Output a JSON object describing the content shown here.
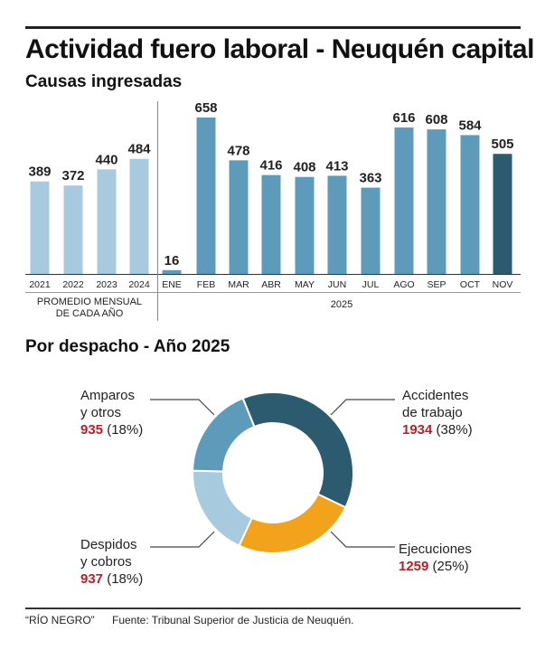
{
  "header": {
    "title": "Actividad fuero laboral - Neuquén capital",
    "subtitle_bars": "Causas ingresadas",
    "subtitle_donut": "Por despacho - Año 2025"
  },
  "colors": {
    "yearly_avg": "#a7cade",
    "monthly": "#5e9bbb",
    "highlight": "#2c5a6f",
    "accidentes": "#2c5a6f",
    "ejecuciones": "#f2a31b",
    "despidos": "#a7cade",
    "amparos": "#5e9bbb",
    "number_red": "#b4212a"
  },
  "chart_data": [
    {
      "type": "bar",
      "title": "Causas ingresadas",
      "categories": [
        "2021",
        "2022",
        "2023",
        "2024",
        "ENE",
        "FEB",
        "MAR",
        "ABR",
        "MAY",
        "JUN",
        "JUL",
        "AGO",
        "SEP",
        "OCT",
        "NOV"
      ],
      "values": [
        389,
        372,
        440,
        484,
        16,
        658,
        478,
        416,
        408,
        413,
        363,
        616,
        608,
        584,
        505
      ],
      "groups": [
        {
          "label": "PROMEDIO MENSUAL\nDE CADA AÑO",
          "label_lines": [
            "PROMEDIO MENSUAL",
            "DE CADA AÑO"
          ],
          "categories": [
            "2021",
            "2022",
            "2023",
            "2024"
          ],
          "color_key": "yearly_avg"
        },
        {
          "label": "2025",
          "label_lines": [
            "2025"
          ],
          "categories": [
            "ENE",
            "FEB",
            "MAR",
            "ABR",
            "MAY",
            "JUN",
            "JUL",
            "AGO",
            "SEP",
            "OCT",
            "NOV"
          ],
          "color_key": "monthly"
        }
      ],
      "highlight_category": "NOV",
      "xlabel": "",
      "ylabel": "",
      "ylim": [
        0,
        658
      ],
      "grid": false,
      "legend": "none"
    },
    {
      "type": "pie",
      "subtype": "donut",
      "title": "Por despacho - Año 2025",
      "slices": [
        {
          "name": "Accidentes de trabajo",
          "label_lines": [
            "Accidentes",
            "de trabajo"
          ],
          "value": 1934,
          "percent": "38%",
          "color_key": "accidentes"
        },
        {
          "name": "Ejecuciones",
          "label_lines": [
            "Ejecuciones"
          ],
          "value": 1259,
          "percent": "25%",
          "color_key": "ejecuciones"
        },
        {
          "name": "Despidos y cobros",
          "label_lines": [
            "Despidos",
            "y cobros"
          ],
          "value": 937,
          "percent": "18%",
          "color_key": "despidos"
        },
        {
          "name": "Amparos y otros",
          "label_lines": [
            "Amparos",
            "y otros"
          ],
          "value": 935,
          "percent": "18%",
          "color_key": "amparos"
        }
      ],
      "legend": "callout labels"
    }
  ],
  "donut_labels": {
    "accidentes": {
      "line1": "Accidentes",
      "line2": "de trabajo",
      "num": "1934",
      "pct": "(38%)"
    },
    "ejecuciones": {
      "line1": "Ejecuciones",
      "num": "1259",
      "pct": "(25%)"
    },
    "despidos": {
      "line1": "Despidos",
      "line2": "y cobros",
      "num": "937",
      "pct": "(18%)"
    },
    "amparos": {
      "line1": "Amparos",
      "line2": "y otros",
      "num": "935",
      "pct": "(18%)"
    }
  },
  "footer": {
    "credit": "“RÍO NEGRO”",
    "source": "Fuente: Tribunal Superior de Justicia de Neuquén."
  }
}
